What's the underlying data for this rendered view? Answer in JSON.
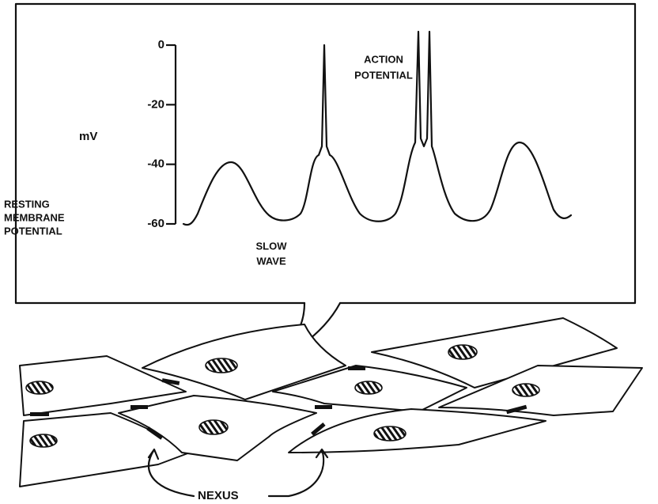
{
  "graph": {
    "y_axis_label": "mV",
    "yticks": [
      0,
      -20,
      -40,
      -60
    ],
    "action_potential": [
      "ACTION",
      "POTENTIAL"
    ],
    "slow_wave": [
      "SLOW",
      "WAVE"
    ],
    "resting_membrane_potential": [
      "RESTING",
      "MEMBRANE",
      "POTENTIAL"
    ]
  },
  "cells": {
    "nexus_label": "NEXUS"
  }
}
